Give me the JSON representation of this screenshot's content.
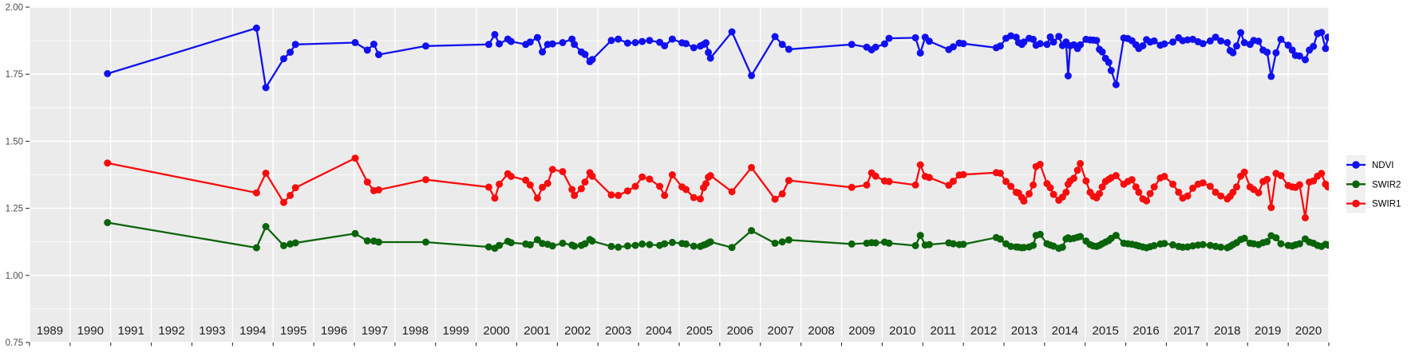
{
  "chart_data": {
    "type": "line",
    "title": "",
    "xlabel": "",
    "ylabel": "",
    "x_range": [
      1989,
      2021
    ],
    "y_range": [
      0.75,
      2.0
    ],
    "grid": {
      "major_step_y": 0.25,
      "minor_step_y": 0.125,
      "vertical_step_x": 1,
      "gridline_color": "#ffffff",
      "panel_bg": "#ebebeb"
    },
    "y_tick_labels": [
      "2.00",
      "1.75",
      "1.50",
      "1.25",
      "1.00",
      "0.75"
    ],
    "y_tick_values": [
      2.0,
      1.75,
      1.5,
      1.25,
      1.0,
      0.75
    ],
    "x_tick_labels": [
      "1989",
      "1990",
      "1991",
      "1992",
      "1993",
      "1994",
      "1995",
      "1996",
      "1997",
      "1998",
      "1999",
      "2000",
      "2001",
      "2002",
      "2003",
      "2004",
      "2005",
      "2006",
      "2007",
      "2008",
      "2009",
      "2010",
      "2011",
      "2012",
      "2013",
      "2014",
      "2015",
      "2016",
      "2017",
      "2018",
      "2019",
      "2020"
    ],
    "legend": {
      "position": "right",
      "key_bg": "#f0f0f0",
      "items": [
        {
          "label": "NDVI",
          "color": "#1111ee"
        },
        {
          "label": "SWIR2",
          "color": "#0a640a"
        },
        {
          "label": "SWIR1",
          "color": "#f70d0d"
        }
      ]
    },
    "x": [
      1990.92,
      1994.59,
      1994.82,
      1995.26,
      1995.42,
      1995.55,
      1997.02,
      1997.32,
      1997.48,
      1997.6,
      1998.76,
      2000.31,
      2000.46,
      2000.57,
      2000.78,
      2000.86,
      2001.22,
      2001.33,
      2001.51,
      2001.63,
      2001.76,
      2001.88,
      2002.13,
      2002.36,
      2002.42,
      2002.59,
      2002.68,
      2002.8,
      2002.86,
      2003.33,
      2003.5,
      2003.73,
      2003.92,
      2004.09,
      2004.27,
      2004.52,
      2004.64,
      2004.83,
      2005.07,
      2005.17,
      2005.36,
      2005.52,
      2005.6,
      2005.66,
      2005.72,
      2005.77,
      2006.3,
      2006.78,
      2007.36,
      2007.54,
      2007.7,
      2009.25,
      2009.62,
      2009.74,
      2009.84,
      2010.06,
      2010.17,
      2010.82,
      2010.94,
      2011.06,
      2011.16,
      2011.64,
      2011.75,
      2011.9,
      2012.0,
      2012.81,
      2012.91,
      2013.05,
      2013.17,
      2013.3,
      2013.36,
      2013.44,
      2013.49,
      2013.62,
      2013.72,
      2013.79,
      2013.89,
      2014.06,
      2014.14,
      2014.22,
      2014.35,
      2014.44,
      2014.53,
      2014.58,
      2014.63,
      2014.72,
      2014.81,
      2014.88,
      2015.02,
      2015.12,
      2015.2,
      2015.28,
      2015.35,
      2015.42,
      2015.5,
      2015.58,
      2015.64,
      2015.76,
      2015.95,
      2016.05,
      2016.15,
      2016.25,
      2016.32,
      2016.42,
      2016.51,
      2016.6,
      2016.7,
      2016.85,
      2016.95,
      2017.16,
      2017.3,
      2017.4,
      2017.52,
      2017.65,
      2017.78,
      2017.9,
      2018.08,
      2018.21,
      2018.34,
      2018.5,
      2018.57,
      2018.64,
      2018.73,
      2018.83,
      2018.92,
      2019.06,
      2019.15,
      2019.27,
      2019.38,
      2019.48,
      2019.58,
      2019.7,
      2019.82,
      2020.0,
      2020.1,
      2020.18,
      2020.28,
      2020.42,
      2020.52,
      2020.62,
      2020.72,
      2020.82,
      2020.92,
      2020.98
    ],
    "series": [
      {
        "name": "NDVI",
        "color": "#1111ee",
        "values": [
          1.752,
          1.922,
          1.7,
          1.808,
          1.832,
          1.861,
          1.868,
          1.84,
          1.862,
          1.823,
          1.855,
          1.861,
          1.898,
          1.863,
          1.881,
          1.872,
          1.861,
          1.87,
          1.887,
          1.833,
          1.861,
          1.863,
          1.868,
          1.881,
          1.861,
          1.833,
          1.824,
          1.797,
          1.805,
          1.876,
          1.881,
          1.866,
          1.868,
          1.872,
          1.876,
          1.869,
          1.856,
          1.881,
          1.867,
          1.864,
          1.849,
          1.855,
          1.861,
          1.867,
          1.831,
          1.81,
          1.908,
          1.745,
          1.89,
          1.861,
          1.843,
          1.861,
          1.851,
          1.841,
          1.851,
          1.863,
          1.884,
          1.886,
          1.829,
          1.888,
          1.873,
          1.842,
          1.852,
          1.866,
          1.864,
          1.849,
          1.855,
          1.884,
          1.893,
          1.888,
          1.868,
          1.861,
          1.87,
          1.884,
          1.88,
          1.858,
          1.864,
          1.861,
          1.889,
          1.87,
          1.891,
          1.857,
          1.87,
          1.744,
          1.856,
          1.86,
          1.846,
          1.86,
          1.88,
          1.878,
          1.877,
          1.876,
          1.843,
          1.833,
          1.809,
          1.794,
          1.764,
          1.711,
          1.885,
          1.883,
          1.875,
          1.86,
          1.846,
          1.856,
          1.879,
          1.87,
          1.874,
          1.858,
          1.863,
          1.87,
          1.886,
          1.875,
          1.878,
          1.88,
          1.871,
          1.864,
          1.874,
          1.888,
          1.874,
          1.868,
          1.838,
          1.83,
          1.855,
          1.905,
          1.868,
          1.861,
          1.876,
          1.873,
          1.84,
          1.832,
          1.742,
          1.83,
          1.88,
          1.858,
          1.84,
          1.82,
          1.818,
          1.804,
          1.84,
          1.854,
          1.901,
          1.906,
          1.846,
          1.888
        ]
      },
      {
        "name": "SWIR2",
        "color": "#0a640a",
        "values": [
          1.197,
          1.103,
          1.182,
          1.111,
          1.117,
          1.121,
          1.156,
          1.129,
          1.128,
          1.124,
          1.124,
          1.106,
          1.101,
          1.112,
          1.127,
          1.122,
          1.117,
          1.114,
          1.133,
          1.119,
          1.116,
          1.11,
          1.12,
          1.113,
          1.109,
          1.112,
          1.118,
          1.134,
          1.128,
          1.108,
          1.105,
          1.11,
          1.112,
          1.117,
          1.115,
          1.112,
          1.118,
          1.123,
          1.119,
          1.117,
          1.109,
          1.108,
          1.113,
          1.116,
          1.121,
          1.125,
          1.104,
          1.167,
          1.12,
          1.125,
          1.132,
          1.117,
          1.12,
          1.122,
          1.121,
          1.124,
          1.12,
          1.111,
          1.149,
          1.113,
          1.115,
          1.121,
          1.118,
          1.115,
          1.116,
          1.141,
          1.135,
          1.118,
          1.108,
          1.106,
          1.105,
          1.103,
          1.104,
          1.106,
          1.112,
          1.149,
          1.153,
          1.118,
          1.113,
          1.109,
          1.101,
          1.105,
          1.136,
          1.14,
          1.136,
          1.138,
          1.142,
          1.145,
          1.128,
          1.115,
          1.11,
          1.108,
          1.112,
          1.118,
          1.124,
          1.13,
          1.138,
          1.149,
          1.12,
          1.118,
          1.116,
          1.113,
          1.11,
          1.106,
          1.103,
          1.107,
          1.111,
          1.117,
          1.119,
          1.114,
          1.108,
          1.105,
          1.106,
          1.11,
          1.113,
          1.115,
          1.112,
          1.108,
          1.105,
          1.103,
          1.108,
          1.115,
          1.122,
          1.134,
          1.138,
          1.12,
          1.118,
          1.115,
          1.122,
          1.126,
          1.148,
          1.14,
          1.118,
          1.112,
          1.11,
          1.114,
          1.118,
          1.136,
          1.124,
          1.12,
          1.112,
          1.108,
          1.116,
          1.113
        ]
      },
      {
        "name": "SWIR1",
        "color": "#f70d0d",
        "values": [
          1.419,
          1.308,
          1.381,
          1.272,
          1.298,
          1.327,
          1.437,
          1.348,
          1.316,
          1.319,
          1.357,
          1.329,
          1.288,
          1.34,
          1.379,
          1.369,
          1.355,
          1.337,
          1.288,
          1.328,
          1.343,
          1.395,
          1.387,
          1.32,
          1.298,
          1.323,
          1.348,
          1.383,
          1.37,
          1.3,
          1.298,
          1.315,
          1.332,
          1.367,
          1.359,
          1.332,
          1.298,
          1.375,
          1.33,
          1.32,
          1.29,
          1.285,
          1.327,
          1.342,
          1.366,
          1.372,
          1.312,
          1.402,
          1.284,
          1.304,
          1.354,
          1.328,
          1.337,
          1.382,
          1.37,
          1.352,
          1.35,
          1.337,
          1.412,
          1.369,
          1.365,
          1.336,
          1.351,
          1.374,
          1.376,
          1.383,
          1.381,
          1.35,
          1.332,
          1.31,
          1.307,
          1.29,
          1.277,
          1.304,
          1.337,
          1.406,
          1.414,
          1.342,
          1.327,
          1.302,
          1.28,
          1.292,
          1.31,
          1.34,
          1.352,
          1.362,
          1.392,
          1.417,
          1.352,
          1.31,
          1.295,
          1.289,
          1.305,
          1.33,
          1.35,
          1.358,
          1.364,
          1.372,
          1.34,
          1.35,
          1.357,
          1.33,
          1.31,
          1.285,
          1.278,
          1.305,
          1.33,
          1.363,
          1.369,
          1.34,
          1.31,
          1.288,
          1.296,
          1.325,
          1.34,
          1.345,
          1.332,
          1.31,
          1.296,
          1.285,
          1.295,
          1.31,
          1.33,
          1.37,
          1.385,
          1.33,
          1.32,
          1.308,
          1.35,
          1.358,
          1.253,
          1.38,
          1.372,
          1.335,
          1.33,
          1.328,
          1.338,
          1.215,
          1.348,
          1.352,
          1.37,
          1.38,
          1.34,
          1.33
        ]
      }
    ],
    "draw_order": [
      "NDVI",
      "SWIR2",
      "SWIR1"
    ],
    "marker_radius": 4.5,
    "line_width": 2.3
  }
}
